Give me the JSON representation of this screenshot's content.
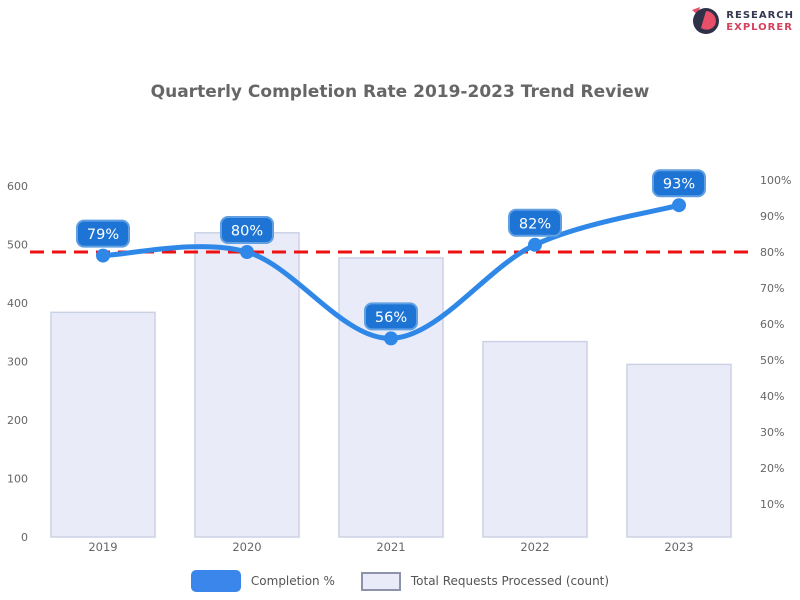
{
  "logo": {
    "line1": "RESEARCH",
    "line2": "EXPLORER",
    "icon": "pie-circle-icon",
    "icon_bg_color": "#2e3147",
    "icon_accent_color": "#e8506a"
  },
  "title": "Quarterly Completion Rate 2019-2023 Trend Review",
  "legend": {
    "line_label": "Completion %",
    "bar_label": "Total Requests Processed (count)"
  },
  "chart_data": {
    "type": "bar",
    "categories": [
      "2019",
      "2020",
      "2021",
      "2022",
      "2023"
    ],
    "series": [
      {
        "name": "Total Requests Processed (count)",
        "type": "bar",
        "axis": "left",
        "values": [
          384,
          520,
          477,
          334,
          295
        ]
      },
      {
        "name": "Completion %",
        "type": "line",
        "axis": "right",
        "values": [
          79,
          80,
          56,
          82,
          93
        ]
      }
    ],
    "point_labels": [
      "79%",
      "80%",
      "56%",
      "82%",
      "93%"
    ],
    "target_line": {
      "value": 80,
      "axis": "right",
      "style": "dashed"
    },
    "left_axis": {
      "min": 0,
      "max": 600,
      "ticks": [
        "600",
        "500",
        "400",
        "300",
        "200",
        "100",
        "0"
      ]
    },
    "right_axis": {
      "min": 0,
      "max": 100,
      "ticks": [
        "100%",
        "90%",
        "80%",
        "70%",
        "60%",
        "50%",
        "40%",
        "30%",
        "20%",
        "10%"
      ]
    },
    "grid": false,
    "legend_position": "bottom",
    "colors": {
      "bar_fill": "#e9ecf8",
      "bar_border": "#ccd2e6",
      "line": "#2f88e8",
      "marker": "#2f88e8",
      "label_box_fill": "#1d74d4",
      "label_box_border": "#5f9fe2",
      "label_text": "#ffffff",
      "target": "#ee1111",
      "axis_text": "#666666"
    }
  }
}
